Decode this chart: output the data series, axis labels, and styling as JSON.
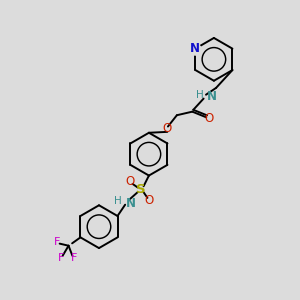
{
  "bg_color": "#dcdcdc",
  "black": "#000000",
  "blue": "#1010cc",
  "red": "#cc2200",
  "yellow": "#aaaa00",
  "teal": "#3a9090",
  "magenta": "#cc00cc",
  "lw": 1.4,
  "figsize": [
    3.0,
    3.0
  ],
  "dpi": 100,
  "xlim": [
    0,
    10
  ],
  "ylim": [
    0,
    10
  ]
}
